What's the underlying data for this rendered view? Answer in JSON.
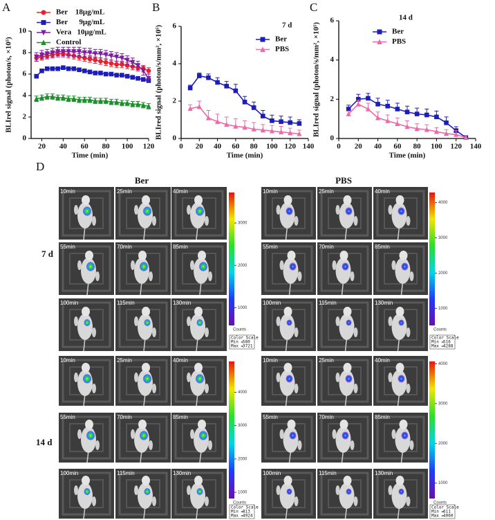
{
  "chart_data": [
    {
      "type": "line",
      "panel": "A",
      "xlabel": "Time (min)",
      "ylabel": "BLIrel signal (photon/s, ×10⁵)",
      "x": [
        15,
        20,
        25,
        30,
        35,
        40,
        45,
        50,
        55,
        60,
        65,
        70,
        75,
        80,
        85,
        90,
        95,
        100,
        105,
        110,
        115,
        120
      ],
      "xlim": [
        10,
        120
      ],
      "xticks": [
        20,
        40,
        60,
        80,
        100,
        120
      ],
      "ylim": [
        0,
        10
      ],
      "yticks": [
        0,
        2,
        4,
        6,
        8,
        10
      ],
      "legend": "upper left",
      "error_direction": "both",
      "series": [
        {
          "name": "Ber    18μg/mL",
          "color": "#e8212b",
          "marker": "circle",
          "values": [
            7.5,
            7.6,
            7.7,
            7.8,
            7.9,
            7.9,
            7.8,
            7.7,
            7.6,
            7.5,
            7.4,
            7.3,
            7.2,
            7.1,
            7.0,
            6.9,
            6.9,
            6.8,
            6.7,
            6.6,
            6.5,
            6.3
          ],
          "errors": [
            0.3,
            0.3,
            0.3,
            0.3,
            0.3,
            0.3,
            0.3,
            0.3,
            0.3,
            0.3,
            0.3,
            0.3,
            0.3,
            0.3,
            0.3,
            0.3,
            0.3,
            0.3,
            0.3,
            0.3,
            0.3,
            0.3
          ]
        },
        {
          "name": "Ber      9μg/mL",
          "color": "#1d1db8",
          "marker": "square",
          "values": [
            5.8,
            6.3,
            6.5,
            6.5,
            6.5,
            6.6,
            6.5,
            6.5,
            6.4,
            6.3,
            6.2,
            6.1,
            6.1,
            6.0,
            6.0,
            5.9,
            5.9,
            5.8,
            5.7,
            5.6,
            5.5,
            5.4
          ],
          "errors": [
            0.15,
            0.15,
            0.15,
            0.15,
            0.15,
            0.15,
            0.15,
            0.15,
            0.15,
            0.15,
            0.15,
            0.15,
            0.15,
            0.15,
            0.15,
            0.15,
            0.15,
            0.15,
            0.15,
            0.15,
            0.15,
            0.15
          ]
        },
        {
          "name": "Vera   10μg/mL",
          "color": "#7b1fa2",
          "marker": "tri-down",
          "values": [
            7.6,
            7.8,
            7.9,
            8.0,
            8.1,
            8.1,
            8.1,
            8.1,
            8.1,
            8.0,
            8.0,
            7.9,
            7.9,
            7.8,
            7.7,
            7.6,
            7.5,
            7.3,
            7.1,
            6.8,
            6.3,
            5.6
          ],
          "errors": [
            0.4,
            0.4,
            0.4,
            0.4,
            0.4,
            0.4,
            0.4,
            0.4,
            0.4,
            0.4,
            0.4,
            0.4,
            0.4,
            0.4,
            0.4,
            0.4,
            0.4,
            0.4,
            0.4,
            0.4,
            0.4,
            0.4
          ]
        },
        {
          "name": "Control",
          "color": "#1e8e2d",
          "marker": "tri-up",
          "values": [
            3.7,
            3.8,
            3.9,
            3.9,
            3.8,
            3.8,
            3.7,
            3.7,
            3.6,
            3.6,
            3.6,
            3.5,
            3.5,
            3.5,
            3.4,
            3.4,
            3.3,
            3.3,
            3.2,
            3.2,
            3.1,
            3.0
          ],
          "errors": [
            0.25,
            0.25,
            0.25,
            0.25,
            0.25,
            0.25,
            0.25,
            0.25,
            0.25,
            0.25,
            0.25,
            0.25,
            0.25,
            0.25,
            0.25,
            0.25,
            0.25,
            0.25,
            0.25,
            0.25,
            0.25,
            0.25
          ]
        }
      ]
    },
    {
      "type": "line",
      "panel": "B",
      "annotation": "7 d",
      "xlabel": "Time (min)",
      "ylabel": "BLIred signal (photon/s/mm², ×10⁵)",
      "x": [
        10,
        20,
        30,
        40,
        50,
        60,
        70,
        80,
        90,
        100,
        110,
        120,
        130
      ],
      "xlim": [
        0,
        140
      ],
      "xticks": [
        0,
        20,
        40,
        60,
        80,
        100,
        120,
        140
      ],
      "ylim": [
        0,
        6
      ],
      "yticks": [
        0,
        2,
        4,
        6
      ],
      "legend": "upper right",
      "error_direction": "up",
      "series": [
        {
          "name": "Ber",
          "color": "#1d1db8",
          "marker": "square",
          "values": [
            2.7,
            3.35,
            3.25,
            3.0,
            2.8,
            2.55,
            1.95,
            1.65,
            1.2,
            0.95,
            0.9,
            0.85,
            0.8
          ],
          "errors": [
            0.15,
            0.15,
            0.2,
            0.25,
            0.25,
            0.35,
            0.3,
            0.3,
            0.3,
            0.3,
            0.3,
            0.3,
            0.2
          ]
        },
        {
          "name": "PBS",
          "color": "#ee6aa7",
          "marker": "tri-up",
          "values": [
            1.6,
            1.7,
            1.1,
            0.9,
            0.75,
            0.65,
            0.6,
            0.5,
            0.45,
            0.4,
            0.35,
            0.3,
            0.25
          ],
          "errors": [
            0.2,
            0.3,
            0.4,
            0.4,
            0.4,
            0.4,
            0.35,
            0.35,
            0.3,
            0.3,
            0.3,
            0.25,
            0.2
          ]
        }
      ]
    },
    {
      "type": "line",
      "panel": "C",
      "annotation": "14 d",
      "xlabel": "Time (min)",
      "ylabel": "BLIred signal (photon/s/mm², ×10⁵)",
      "x": [
        10,
        20,
        30,
        40,
        50,
        60,
        70,
        80,
        90,
        100,
        110,
        120,
        130
      ],
      "xlim": [
        0,
        140
      ],
      "xticks": [
        0,
        20,
        40,
        60,
        80,
        100,
        120,
        140
      ],
      "ylim": [
        0,
        6
      ],
      "yticks": [
        0,
        2,
        4,
        6
      ],
      "legend": "upper center",
      "error_direction": "up",
      "series": [
        {
          "name": "Ber",
          "color": "#1d1db8",
          "marker": "square",
          "values": [
            1.5,
            2.0,
            2.05,
            1.75,
            1.65,
            1.5,
            1.35,
            1.25,
            1.2,
            1.1,
            0.8,
            0.4,
            0.05
          ],
          "errors": [
            0.2,
            0.25,
            0.25,
            0.3,
            0.3,
            0.3,
            0.3,
            0.3,
            0.3,
            0.3,
            0.3,
            0.2,
            0.1
          ]
        },
        {
          "name": "PBS",
          "color": "#ee6aa7",
          "marker": "tri-up",
          "values": [
            1.25,
            1.75,
            1.5,
            1.05,
            0.9,
            0.75,
            0.6,
            0.5,
            0.45,
            0.35,
            0.25,
            0.2,
            0.05
          ],
          "errors": [
            0.15,
            0.2,
            0.3,
            0.3,
            0.3,
            0.3,
            0.3,
            0.25,
            0.25,
            0.2,
            0.2,
            0.2,
            0.1
          ]
        }
      ]
    }
  ],
  "panel_d": {
    "label": "D",
    "groups": [
      "Ber",
      "PBS"
    ],
    "rows": [
      "7 d",
      "14 d"
    ],
    "times": [
      "10min",
      "25min",
      "40min",
      "55min",
      "70min",
      "85min",
      "100min",
      "115min",
      "130min"
    ],
    "scale_unit": "Counts",
    "scale_caption": "Color Scale",
    "min_label": "Min =",
    "max_label": "Max =",
    "scales": [
      {
        "min": 580,
        "max": 3721,
        "ticks": [
          1000,
          2000,
          3000
        ]
      },
      {
        "min": 516,
        "max": 4288,
        "ticks": [
          1000,
          2000,
          3000,
          4000
        ]
      },
      {
        "min": 813,
        "max": 4924,
        "ticks": [
          1000,
          2000,
          3000,
          4000
        ]
      },
      {
        "min": 611,
        "max": 4060,
        "ticks": [
          1000,
          2000,
          3000,
          4000
        ]
      }
    ]
  }
}
